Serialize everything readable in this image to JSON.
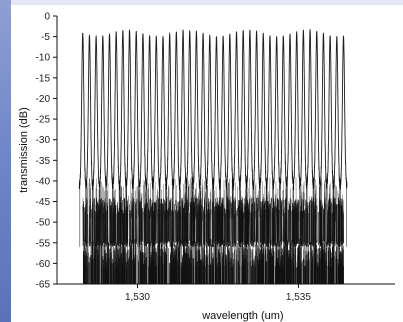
{
  "chart_data": {
    "type": "line",
    "title": "",
    "xlabel": "wavelength (um)",
    "ylabel": "transmission (dB)",
    "xlim": [
      1527.5,
      1538.0
    ],
    "ylim": [
      -65,
      0
    ],
    "x_ticks": [
      "1,530",
      "1,535"
    ],
    "x_tick_values": [
      1530,
      1535
    ],
    "y_ticks": [
      "0",
      "-5",
      "-10",
      "-15",
      "-20",
      "-25",
      "-30",
      "-35",
      "-40",
      "-45",
      "-50",
      "-55",
      "-60",
      "-65"
    ],
    "y_tick_values": [
      0,
      -5,
      -10,
      -15,
      -20,
      -25,
      -30,
      -35,
      -40,
      -45,
      -50,
      -55,
      -60,
      -65
    ],
    "grid": false,
    "series_description_free": true,
    "channel_count": 40,
    "channel_start": 1528.3,
    "channel_end": 1536.4,
    "peak_transmission": -4,
    "floor_transmission": -65,
    "band_level_upper": -39,
    "band_level_mid": -48,
    "band_level_lower": -56
  },
  "colors": {
    "line": "#111111",
    "axis": "#111111",
    "background": "#ffffff",
    "left_stripe": "#6f86c7",
    "page_tint": "#e5e8f4"
  }
}
